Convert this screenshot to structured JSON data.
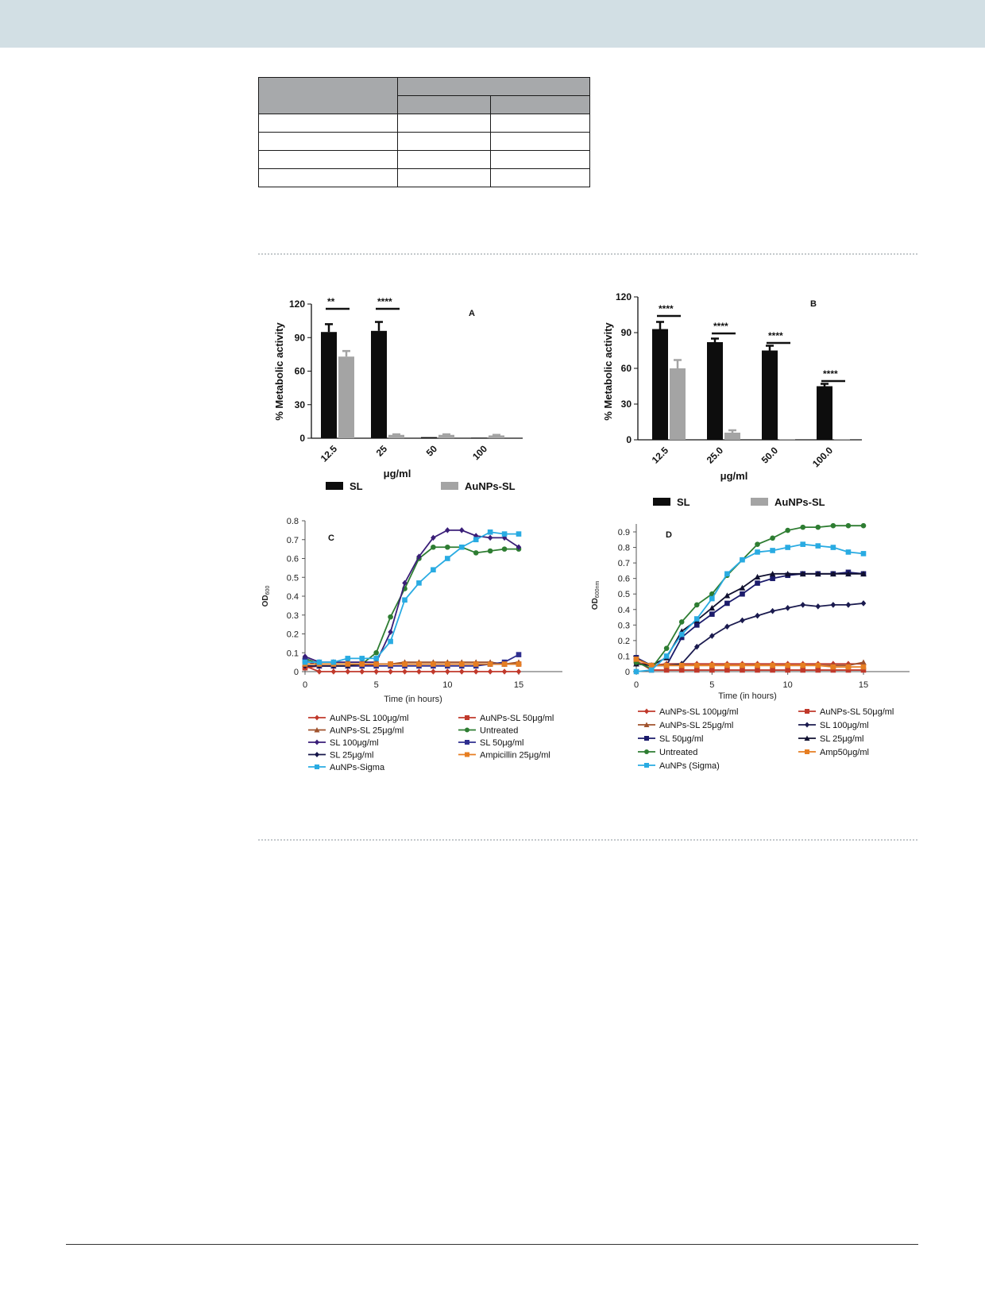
{
  "table": {
    "rows": [
      [
        "",
        ""
      ],
      [
        "",
        "",
        ""
      ],
      [
        "",
        "",
        ""
      ],
      [
        "",
        "",
        ""
      ],
      [
        "",
        "",
        ""
      ],
      [
        "",
        "",
        ""
      ]
    ]
  },
  "chart_data": [
    {
      "panel": "A",
      "type": "bar",
      "categories": [
        "12.5",
        "25",
        "50",
        "100"
      ],
      "series": [
        {
          "name": "SL",
          "values": [
            95,
            96,
            1,
            0.5
          ],
          "errors": [
            7,
            8,
            0,
            0
          ]
        },
        {
          "name": "AuNPs-SL",
          "values": [
            73,
            3,
            3,
            2.5
          ],
          "errors": [
            5,
            0.5,
            0.5,
            0.5
          ]
        }
      ],
      "significance": [
        "**",
        "****",
        "",
        ""
      ],
      "xlabel": "μg/ml",
      "ylabel": "% Metabolic activity",
      "ylim": [
        0,
        120
      ],
      "yticks": [
        "0",
        "30",
        "60",
        "90",
        "120"
      ],
      "legend": "bottom"
    },
    {
      "panel": "B",
      "type": "bar",
      "categories": [
        "12.5",
        "25.0",
        "50.0",
        "100.0"
      ],
      "series": [
        {
          "name": "SL",
          "values": [
            93,
            82,
            75,
            45
          ],
          "errors": [
            6,
            3,
            4,
            2
          ]
        },
        {
          "name": "AuNPs-SL",
          "values": [
            60,
            6,
            0.5,
            0.5
          ],
          "errors": [
            7,
            2,
            0,
            0
          ]
        }
      ],
      "significance": [
        "****",
        "****",
        "****",
        "****"
      ],
      "xlabel": "μg/ml",
      "ylabel": "% Metabolic activity",
      "ylim": [
        0,
        120
      ],
      "yticks": [
        "0",
        "30",
        "60",
        "90",
        "120"
      ],
      "legend": "bottom"
    },
    {
      "panel": "C",
      "type": "line",
      "xlabel": "Time (in hours)",
      "ylabel": "OD",
      "ylabel_sub": "600",
      "xlim": [
        0,
        15
      ],
      "ylim": [
        0,
        0.8
      ],
      "xticks": [
        "0",
        "5",
        "10",
        "15"
      ],
      "yticks": [
        "0",
        "0.1",
        "0.2",
        "0.3",
        "0.4",
        "0.5",
        "0.6",
        "0.7",
        "0.8"
      ],
      "x": [
        0,
        1,
        2,
        3,
        4,
        5,
        6,
        7,
        8,
        9,
        10,
        11,
        12,
        13,
        14,
        15
      ],
      "series": [
        {
          "name": "AuNPs-SL 100μg/ml",
          "color": "#c0392b",
          "marker": "diamond",
          "values": [
            0.03,
            0,
            0,
            0,
            0,
            0,
            0,
            0,
            0,
            0,
            0,
            0,
            0,
            0,
            0,
            0
          ]
        },
        {
          "name": "AuNPs-SL 50μg/ml",
          "color": "#c0392b",
          "marker": "square",
          "values": [
            0.02,
            0.03,
            0.03,
            0.03,
            0.03,
            0.04,
            0.04,
            0.04,
            0.04,
            0.04,
            0.04,
            0.04,
            0.04,
            0.04,
            0.04,
            0.04
          ]
        },
        {
          "name": "AuNPs-SL 25μg/ml",
          "color": "#a0522d",
          "marker": "triangle",
          "values": [
            0.04,
            0.04,
            0.04,
            0.04,
            0.04,
            0.04,
            0.04,
            0.05,
            0.05,
            0.05,
            0.05,
            0.05,
            0.05,
            0.05,
            0.04,
            0.05
          ]
        },
        {
          "name": "Untreated",
          "color": "#2e7d32",
          "marker": "circle",
          "values": [
            0.07,
            0.04,
            0.04,
            0.04,
            0.04,
            0.1,
            0.29,
            0.44,
            0.6,
            0.66,
            0.66,
            0.66,
            0.63,
            0.64,
            0.65,
            0.65
          ]
        },
        {
          "name": "SL 100μg/ml",
          "color": "#3a1e78",
          "marker": "diamond",
          "values": [
            0.08,
            0.05,
            0.05,
            0.05,
            0.05,
            0.05,
            0.21,
            0.47,
            0.61,
            0.71,
            0.75,
            0.75,
            0.72,
            0.71,
            0.71,
            0.66
          ]
        },
        {
          "name": "SL 50μg/ml",
          "color": "#2f2f8f",
          "marker": "square",
          "values": [
            0.06,
            0.03,
            0.03,
            0.03,
            0.03,
            0.03,
            0.03,
            0.03,
            0.03,
            0.03,
            0.03,
            0.03,
            0.03,
            0.04,
            0.05,
            0.09
          ]
        },
        {
          "name": "SL 25μg/ml",
          "color": "#16164a",
          "marker": "diamond",
          "values": [
            0.03,
            0.03,
            0.03,
            0.03,
            0.04,
            0.04,
            0.04,
            0.04,
            0.04,
            0.04,
            0.04,
            0.04,
            0.04,
            0.04,
            0.04,
            0.04
          ]
        },
        {
          "name": "Ampicillin 25μg/ml",
          "color": "#e67e22",
          "marker": "square",
          "values": [
            0.04,
            0.04,
            0.04,
            0.04,
            0.04,
            0.04,
            0.04,
            0.04,
            0.04,
            0.04,
            0.04,
            0.04,
            0.04,
            0.04,
            0.04,
            0.04
          ]
        },
        {
          "name": "AuNPs-Sigma",
          "color": "#29abe2",
          "marker": "square",
          "values": [
            0.05,
            0.05,
            0.05,
            0.07,
            0.07,
            0.07,
            0.16,
            0.38,
            0.47,
            0.54,
            0.6,
            0.66,
            0.7,
            0.74,
            0.73,
            0.73
          ]
        }
      ],
      "legend": "bottom"
    },
    {
      "panel": "D",
      "type": "line",
      "xlabel": "Time (in hours)",
      "ylabel": "OD",
      "ylabel_sub": "600nm",
      "xlim": [
        0,
        15
      ],
      "ylim": [
        0,
        0.95
      ],
      "xticks": [
        "0",
        "5",
        "10",
        "15"
      ],
      "yticks": [
        "0",
        "0.1",
        "0.2",
        "0.3",
        "0.4",
        "0.5",
        "0.6",
        "0.7",
        "0.8",
        "0.9"
      ],
      "x": [
        0,
        1,
        2,
        3,
        4,
        5,
        6,
        7,
        8,
        9,
        10,
        11,
        12,
        13,
        14,
        15
      ],
      "series": [
        {
          "name": "AuNPs-SL 100μg/ml",
          "color": "#c0392b",
          "marker": "diamond",
          "values": [
            0.06,
            0.04,
            0.05,
            0.05,
            0.05,
            0.05,
            0.05,
            0.05,
            0.05,
            0.05,
            0.05,
            0.05,
            0.05,
            0.05,
            0.05,
            0.05
          ]
        },
        {
          "name": "AuNPs-SL 50μg/ml",
          "color": "#c0392b",
          "marker": "square",
          "values": [
            0.07,
            0.01,
            0.01,
            0.01,
            0.01,
            0.01,
            0.01,
            0.01,
            0.01,
            0.01,
            0.01,
            0.01,
            0.01,
            0.01,
            0.01,
            0.01
          ]
        },
        {
          "name": "AuNPs-SL 25μg/ml",
          "color": "#a0522d",
          "marker": "triangle",
          "values": [
            0.05,
            0.04,
            0.04,
            0.04,
            0.04,
            0.04,
            0.04,
            0.04,
            0.04,
            0.04,
            0.04,
            0.04,
            0.04,
            0.04,
            0.04,
            0.06
          ]
        },
        {
          "name": "SL 100μg/ml",
          "color": "#1b1b4f",
          "marker": "diamond",
          "values": [
            0.05,
            0.04,
            0.04,
            0.05,
            0.16,
            0.23,
            0.29,
            0.33,
            0.36,
            0.39,
            0.41,
            0.43,
            0.42,
            0.43,
            0.43,
            0.44
          ]
        },
        {
          "name": "SL 50μg/ml",
          "color": "#1b1b6b",
          "marker": "square",
          "values": [
            0.09,
            0.04,
            0.04,
            0.22,
            0.3,
            0.37,
            0.44,
            0.5,
            0.57,
            0.6,
            0.62,
            0.63,
            0.63,
            0.63,
            0.64,
            0.63
          ]
        },
        {
          "name": "SL 25μg/ml",
          "color": "#101030",
          "marker": "triangle",
          "values": [
            0.05,
            0.04,
            0.09,
            0.26,
            0.33,
            0.41,
            0.49,
            0.54,
            0.61,
            0.63,
            0.63,
            0.63,
            0.63,
            0.63,
            0.63,
            0.63
          ]
        },
        {
          "name": "Untreated",
          "color": "#2e7d32",
          "marker": "circle",
          "values": [
            0.06,
            0.02,
            0.15,
            0.32,
            0.43,
            0.5,
            0.62,
            0.72,
            0.82,
            0.86,
            0.91,
            0.93,
            0.93,
            0.94,
            0.94,
            0.94
          ]
        },
        {
          "name": "Amp50μg/ml",
          "color": "#e67e22",
          "marker": "square",
          "values": [
            0.08,
            0.04,
            0.04,
            0.04,
            0.04,
            0.04,
            0.04,
            0.04,
            0.04,
            0.04,
            0.04,
            0.04,
            0.04,
            0.03,
            0.03,
            0.03
          ]
        },
        {
          "name": "AuNPs (Sigma)",
          "color": "#29abe2",
          "marker": "square",
          "values": [
            0,
            0.01,
            0.1,
            0.24,
            0.34,
            0.47,
            0.63,
            0.72,
            0.77,
            0.78,
            0.8,
            0.82,
            0.81,
            0.8,
            0.77,
            0.76
          ]
        }
      ],
      "legend": "bottom"
    }
  ]
}
